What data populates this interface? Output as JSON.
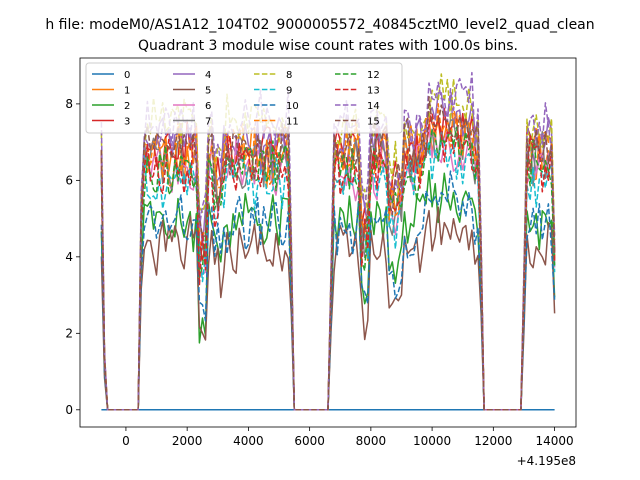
{
  "chart_data": {
    "type": "line",
    "suptitle": "h file: modeM0/AS1A12_104T02_9000005572_40845cztM0_level2_quad_clean",
    "title": "Quadrant 3 module wise count rates with 100.0s bins.",
    "xlabel": "",
    "ylabel": "",
    "x_offset_label": "+4.195e8",
    "xlim": [
      -1500,
      14700
    ],
    "ylim": [
      -0.45,
      9.2
    ],
    "xticks": [
      0,
      2000,
      4000,
      6000,
      8000,
      10000,
      12000,
      14000
    ],
    "yticks": [
      0,
      2,
      4,
      6,
      8
    ],
    "legend": {
      "position": "top-left",
      "columns": 4
    },
    "segments": [
      {
        "x_start": -800,
        "x_end": -650,
        "state": "ramp_down"
      },
      {
        "x_start": -650,
        "x_end": 400,
        "state": "off"
      },
      {
        "x_start": 400,
        "x_end": 5450,
        "state": "on"
      },
      {
        "x_start": 5450,
        "x_end": 6650,
        "state": "off"
      },
      {
        "x_start": 6650,
        "x_end": 11650,
        "state": "on"
      },
      {
        "x_start": 11650,
        "x_end": 12950,
        "state": "off"
      },
      {
        "x_start": 12950,
        "x_end": 14000,
        "state": "on"
      }
    ],
    "series": [
      {
        "name": "0",
        "color": "#1f77b4",
        "dash": "solid",
        "level": 0.0
      },
      {
        "name": "1",
        "color": "#ff7f0e",
        "dash": "solid",
        "level": 6.6
      },
      {
        "name": "2",
        "color": "#2ca02c",
        "dash": "solid",
        "level": 4.9
      },
      {
        "name": "3",
        "color": "#d62728",
        "dash": "solid",
        "level": 6.9
      },
      {
        "name": "4",
        "color": "#9467bd",
        "dash": "solid",
        "level": 7.0
      },
      {
        "name": "5",
        "color": "#8c564b",
        "dash": "solid",
        "level": 4.2
      },
      {
        "name": "6",
        "color": "#e377c2",
        "dash": "solid",
        "level": 6.2
      },
      {
        "name": "7",
        "color": "#7f7f7f",
        "dash": "solid",
        "level": 6.5
      },
      {
        "name": "8",
        "color": "#bcbd22",
        "dash": "dashed",
        "level": 7.4
      },
      {
        "name": "9",
        "color": "#17becf",
        "dash": "dashed",
        "level": 6.0
      },
      {
        "name": "10",
        "color": "#1f77b4",
        "dash": "dashed",
        "level": 4.8
      },
      {
        "name": "11",
        "color": "#ff7f0e",
        "dash": "dashed",
        "level": 6.7
      },
      {
        "name": "12",
        "color": "#2ca02c",
        "dash": "dashed",
        "level": 6.3
      },
      {
        "name": "13",
        "color": "#d62728",
        "dash": "dashed",
        "level": 6.4
      },
      {
        "name": "14",
        "color": "#9467bd",
        "dash": "dashed",
        "level": 7.6
      },
      {
        "name": "15",
        "color": "#8c564b",
        "dash": "dashed",
        "level": 6.8
      }
    ]
  }
}
